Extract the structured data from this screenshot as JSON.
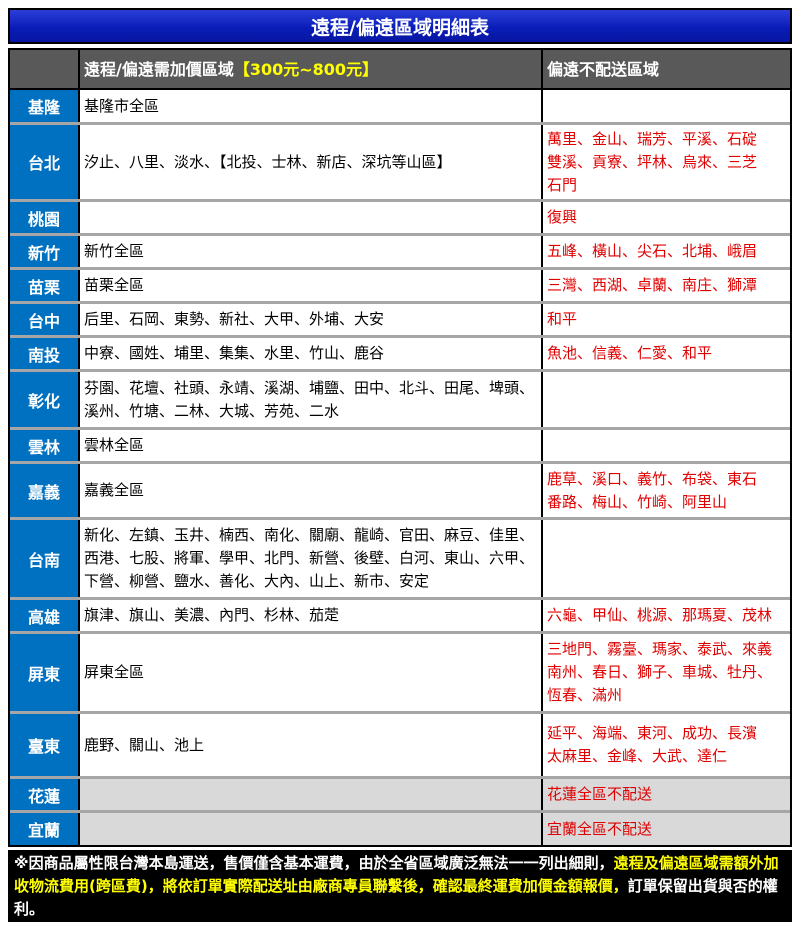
{
  "title": "遠程/偏遠區域明細表",
  "header": {
    "remote_label": "遠程/偏遠需加價區域",
    "remote_price": "【300元~800元】",
    "no_delivery_label": "偏遠不配送區域"
  },
  "colors": {
    "title_bg": "#0a1db8",
    "region_bg": "#0070c0",
    "header_bg": "#595959",
    "red_text": "#e00000",
    "highlight": "#ffff00"
  },
  "rows": [
    {
      "region": "基隆",
      "remote": "基隆市全區",
      "none": [],
      "h": 32
    },
    {
      "region": "台北",
      "remote": "汐止、八里、淡水、【北投、士林、新店、深坑等山區】",
      "none": [
        "萬里、金山、瑞芳、平溪、石碇",
        "雙溪、貢寮、坪林、烏來、三芝",
        "石門"
      ],
      "h": 74
    },
    {
      "region": "桃園",
      "remote": "",
      "none": [
        "復興"
      ],
      "h": 31
    },
    {
      "region": "新竹",
      "remote": "新竹全區",
      "none": [
        "五峰、橫山、尖石、北埔、峨眉"
      ],
      "h": 31
    },
    {
      "region": "苗栗",
      "remote": "苗栗全區",
      "none": [
        "三灣、西湖、卓蘭、南庄、獅潭"
      ],
      "h": 31
    },
    {
      "region": "台中",
      "remote": "后里、石岡、東勢、新社、大甲、外埔、大安",
      "none": [
        "和平"
      ],
      "h": 31
    },
    {
      "region": "南投",
      "remote": "中寮、國姓、埔里、集集、水里、竹山、鹿谷",
      "none": [
        "魚池、信義、仁愛、和平"
      ],
      "h": 31
    },
    {
      "region": "彰化",
      "remote": "芬園、花壇、社頭、永靖、溪湖、埔鹽、田中、北斗、田尾、埤頭、溪州、竹塘、二林、大城、芳苑、二水",
      "none": [],
      "h": 55
    },
    {
      "region": "雲林",
      "remote": "雲林全區",
      "none": [],
      "h": 31
    },
    {
      "region": "嘉義",
      "remote": "嘉義全區",
      "none": [
        "鹿草、溪口、義竹、布袋、東石",
        "番路、梅山、竹崎、阿里山"
      ],
      "h": 53
    },
    {
      "region": "台南",
      "remote": "新化、左鎮、玉井、楠西、南化、關廟、龍崎、官田、麻豆、佳里、西港、七股、將軍、學甲、北門、新營、後壁、白河、東山、六甲、下營、柳營、鹽水、善化、大內、山上、新市、安定",
      "none": [],
      "h": 77
    },
    {
      "region": "高雄",
      "remote": "旗津、旗山、美濃、內門、杉林、茄萣",
      "none": [
        "六龜、甲仙、桃源、那瑪夏、茂林"
      ],
      "h": 31
    },
    {
      "region": "屏東",
      "remote": "屏東全區",
      "none": [
        "三地門、霧臺、瑪家、泰武、來義",
        "南州、春日、獅子、車城、牡丹、",
        "恆春、滿州"
      ],
      "h": 77
    },
    {
      "region": "臺東",
      "remote": "鹿野、關山、池上",
      "none": [
        "延平、海端、東河、成功、長濱",
        "太麻里、金峰、大武、達仁"
      ],
      "h": 62
    },
    {
      "region": "花蓮",
      "remote": "",
      "none": [
        "花蓮全區不配送"
      ],
      "h": 31,
      "gray": true
    },
    {
      "region": "宜蘭",
      "remote": "",
      "none": [
        "宜蘭全區不配送"
      ],
      "h": 32,
      "gray": true
    }
  ],
  "note": {
    "part1": "※因商品屬性限台灣本島運送，售價僅含基本運費，由於全省區域廣泛無法一一列出細則，",
    "part2": "遠程及偏遠區域需額外加收物流費用(跨區費)，將依訂單實際配送址由廠商專員聯繫後，確認最終運費加價金額報價，",
    "part3": "訂單保留出貨與否的權利。"
  }
}
